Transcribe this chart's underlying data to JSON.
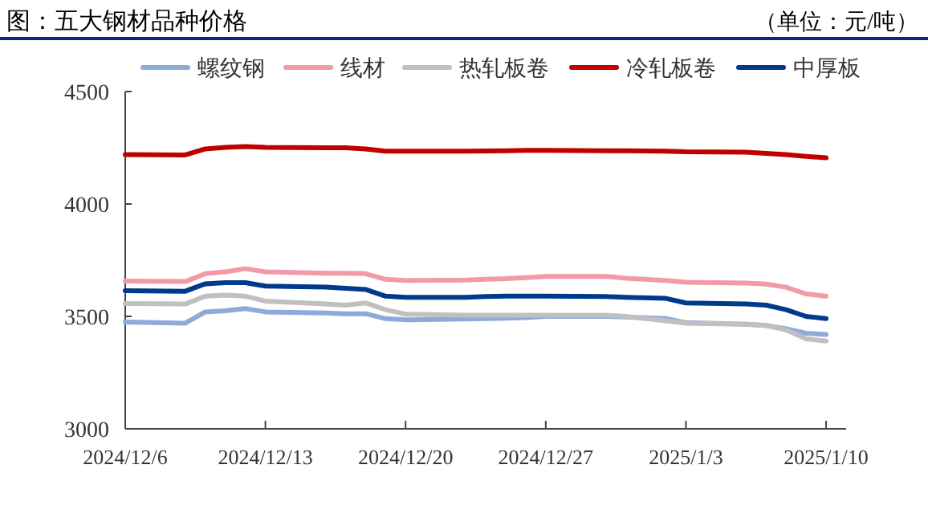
{
  "chart_data": {
    "type": "line",
    "title": "图：五大钢材品种价格",
    "subtitle": "（单位：元/吨）",
    "x": [
      "2024-12-06",
      "2024-12-09",
      "2024-12-10",
      "2024-12-11",
      "2024-12-12",
      "2024-12-13",
      "2024-12-16",
      "2024-12-17",
      "2024-12-18",
      "2024-12-19",
      "2024-12-20",
      "2024-12-23",
      "2024-12-24",
      "2024-12-25",
      "2024-12-26",
      "2024-12-27",
      "2024-12-30",
      "2024-12-31",
      "2025-01-02",
      "2025-01-03",
      "2025-01-06",
      "2025-01-07",
      "2025-01-08",
      "2025-01-09",
      "2025-01-10"
    ],
    "series": [
      {
        "name": "螺纹钢",
        "color": "#8eaadb",
        "values": [
          3475,
          3470,
          3520,
          3525,
          3535,
          3520,
          3515,
          3512,
          3512,
          3490,
          3485,
          3488,
          3490,
          3492,
          3495,
          3500,
          3500,
          3497,
          3490,
          3472,
          3465,
          3460,
          3445,
          3425,
          3420
        ]
      },
      {
        "name": "线材",
        "color": "#f19ba8",
        "values": [
          3657,
          3655,
          3690,
          3698,
          3712,
          3698,
          3692,
          3692,
          3690,
          3665,
          3660,
          3662,
          3665,
          3668,
          3672,
          3678,
          3678,
          3670,
          3660,
          3652,
          3648,
          3644,
          3630,
          3600,
          3590
        ]
      },
      {
        "name": "热轧板卷",
        "color": "#c0c0c0",
        "values": [
          3557,
          3555,
          3590,
          3595,
          3590,
          3568,
          3555,
          3550,
          3560,
          3530,
          3510,
          3505,
          3505,
          3505,
          3505,
          3505,
          3505,
          3500,
          3480,
          3470,
          3465,
          3460,
          3440,
          3400,
          3390
        ]
      },
      {
        "name": "冷轧板卷",
        "color": "#c00000",
        "values": [
          4220,
          4218,
          4245,
          4252,
          4255,
          4252,
          4250,
          4250,
          4245,
          4235,
          4235,
          4235,
          4236,
          4237,
          4238,
          4238,
          4237,
          4237,
          4235,
          4232,
          4230,
          4225,
          4220,
          4212,
          4205
        ]
      },
      {
        "name": "中厚板",
        "color": "#003a8c",
        "values": [
          3614,
          3612,
          3645,
          3650,
          3650,
          3635,
          3630,
          3625,
          3620,
          3590,
          3585,
          3585,
          3588,
          3590,
          3590,
          3590,
          3588,
          3585,
          3580,
          3560,
          3555,
          3550,
          3530,
          3500,
          3490
        ]
      }
    ],
    "xlim": [
      "2024-12-06",
      "2025-01-11"
    ],
    "xticks": [
      {
        "value": "2024-12-06",
        "label": "2024/12/6"
      },
      {
        "value": "2024-12-13",
        "label": "2024/12/13"
      },
      {
        "value": "2024-12-20",
        "label": "2024/12/20"
      },
      {
        "value": "2024-12-27",
        "label": "2024/12/27"
      },
      {
        "value": "2025-01-03",
        "label": "2025/1/3"
      },
      {
        "value": "2025-01-10",
        "label": "2025/1/10"
      }
    ],
    "ylim": [
      3000,
      4500
    ],
    "yticks": [
      3000,
      3500,
      4000,
      4500
    ],
    "legend": "top",
    "grid": false,
    "marker": "none",
    "line_style": "solid"
  }
}
